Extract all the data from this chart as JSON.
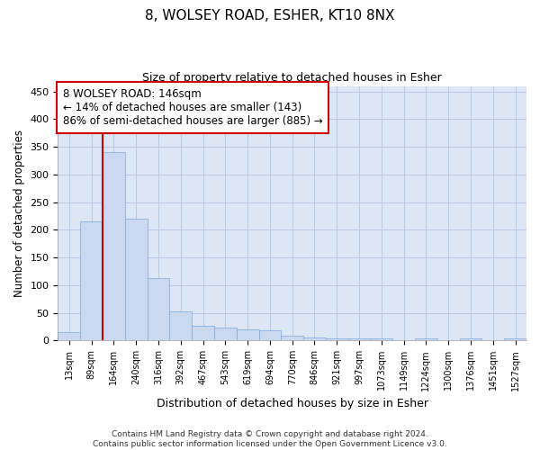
{
  "title": "8, WOLSEY ROAD, ESHER, KT10 8NX",
  "subtitle": "Size of property relative to detached houses in Esher",
  "xlabel": "Distribution of detached houses by size in Esher",
  "ylabel": "Number of detached properties",
  "bar_labels": [
    "13sqm",
    "89sqm",
    "164sqm",
    "240sqm",
    "316sqm",
    "392sqm",
    "467sqm",
    "543sqm",
    "619sqm",
    "694sqm",
    "770sqm",
    "846sqm",
    "921sqm",
    "997sqm",
    "1073sqm",
    "1149sqm",
    "1224sqm",
    "1300sqm",
    "1376sqm",
    "1451sqm",
    "1527sqm"
  ],
  "bar_values": [
    15,
    215,
    340,
    220,
    112,
    52,
    26,
    24,
    20,
    18,
    9,
    6,
    4,
    4,
    4,
    0,
    4,
    0,
    4,
    0,
    4
  ],
  "bar_color": "#cad9f0",
  "bar_edgecolor": "#7aa8d8",
  "ylim": [
    0,
    460
  ],
  "yticks": [
    0,
    50,
    100,
    150,
    200,
    250,
    300,
    350,
    400,
    450
  ],
  "red_line_x": 2,
  "annotation_text": "8 WOLSEY ROAD: 146sqm\n← 14% of detached houses are smaller (143)\n86% of semi-detached houses are larger (885) →",
  "annotation_box_color": "#ffffff",
  "annotation_box_edgecolor": "#cc0000",
  "grid_color": "#b8c8e0",
  "background_color": "#dce6f5",
  "footer_line1": "Contains HM Land Registry data © Crown copyright and database right 2024.",
  "footer_line2": "Contains public sector information licensed under the Open Government Licence v3.0."
}
